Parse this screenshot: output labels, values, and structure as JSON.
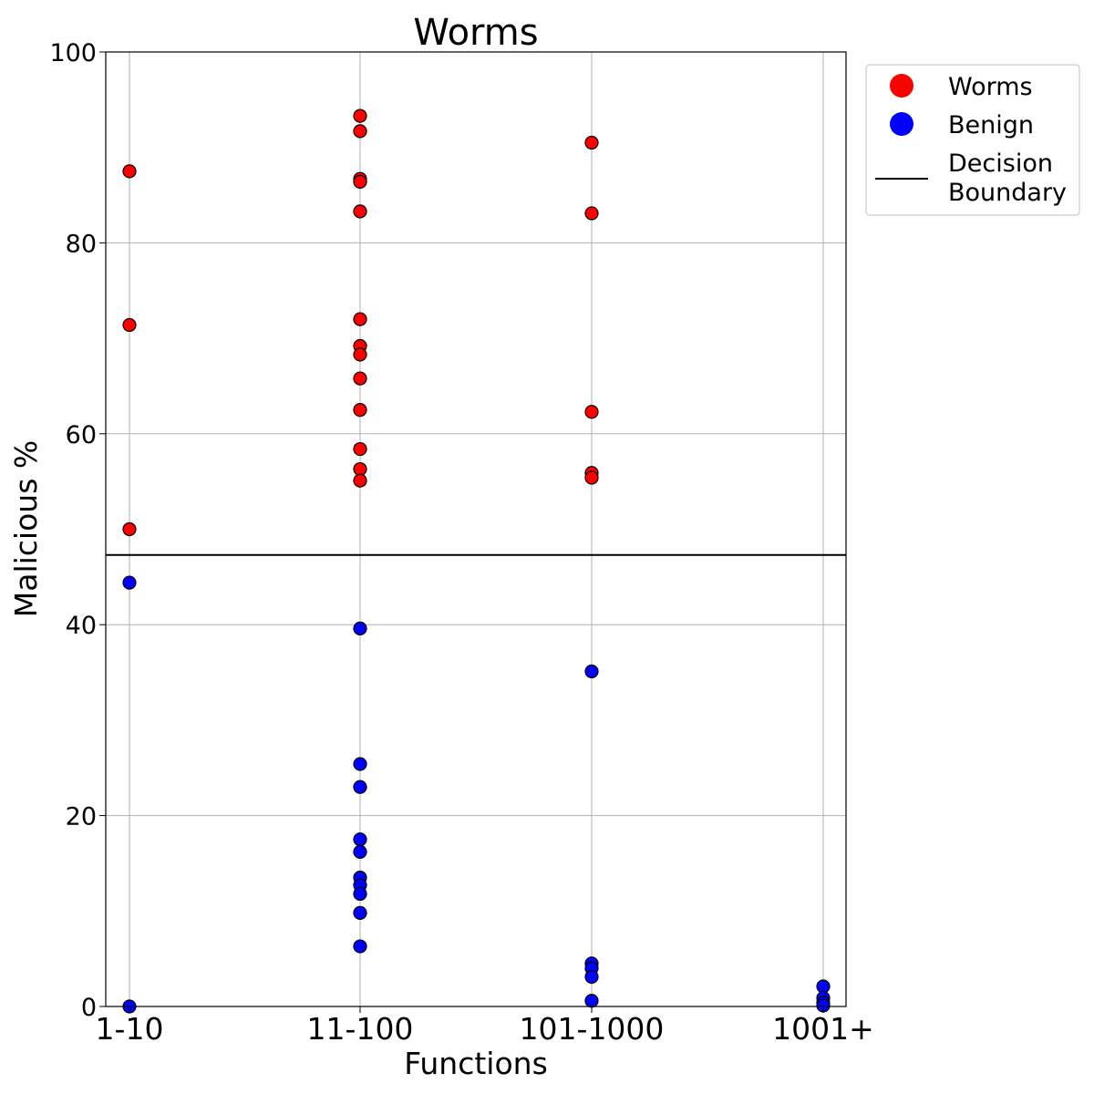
{
  "chart_data": {
    "type": "scatter",
    "title": "Worms",
    "xlabel": "Functions",
    "ylabel": "Malicious %",
    "categories": [
      "1-10",
      "11-100",
      "101-1000",
      "1001+"
    ],
    "ylim": [
      0,
      100
    ],
    "yticks": [
      "0",
      "20",
      "40",
      "60",
      "80",
      "100"
    ],
    "grid": true,
    "legend_position": "outside top-right",
    "decision_boundary": 47.3,
    "series": [
      {
        "name": "Worms",
        "color": "#ff0000",
        "points": [
          {
            "x": "1-10",
            "y": 87.5
          },
          {
            "x": "1-10",
            "y": 71.4
          },
          {
            "x": "1-10",
            "y": 50.0
          },
          {
            "x": "11-100",
            "y": 93.3
          },
          {
            "x": "11-100",
            "y": 91.7
          },
          {
            "x": "11-100",
            "y": 86.7
          },
          {
            "x": "11-100",
            "y": 86.4
          },
          {
            "x": "11-100",
            "y": 83.3
          },
          {
            "x": "11-100",
            "y": 72.0
          },
          {
            "x": "11-100",
            "y": 69.2
          },
          {
            "x": "11-100",
            "y": 68.3
          },
          {
            "x": "11-100",
            "y": 65.8
          },
          {
            "x": "11-100",
            "y": 62.5
          },
          {
            "x": "11-100",
            "y": 58.4
          },
          {
            "x": "11-100",
            "y": 56.3
          },
          {
            "x": "11-100",
            "y": 55.1
          },
          {
            "x": "101-1000",
            "y": 90.5
          },
          {
            "x": "101-1000",
            "y": 83.1
          },
          {
            "x": "101-1000",
            "y": 62.3
          },
          {
            "x": "101-1000",
            "y": 55.9
          },
          {
            "x": "101-1000",
            "y": 55.4
          }
        ]
      },
      {
        "name": "Benign",
        "color": "#0000ff",
        "points": [
          {
            "x": "1-10",
            "y": 44.4
          },
          {
            "x": "1-10",
            "y": 0.0
          },
          {
            "x": "11-100",
            "y": 39.6
          },
          {
            "x": "11-100",
            "y": 25.4
          },
          {
            "x": "11-100",
            "y": 23.0
          },
          {
            "x": "11-100",
            "y": 17.5
          },
          {
            "x": "11-100",
            "y": 16.2
          },
          {
            "x": "11-100",
            "y": 13.5
          },
          {
            "x": "11-100",
            "y": 12.7
          },
          {
            "x": "11-100",
            "y": 11.8
          },
          {
            "x": "11-100",
            "y": 9.8
          },
          {
            "x": "11-100",
            "y": 6.3
          },
          {
            "x": "101-1000",
            "y": 35.1
          },
          {
            "x": "101-1000",
            "y": 4.5
          },
          {
            "x": "101-1000",
            "y": 4.0
          },
          {
            "x": "101-1000",
            "y": 3.1
          },
          {
            "x": "101-1000",
            "y": 0.6
          },
          {
            "x": "1001+",
            "y": 2.1
          },
          {
            "x": "1001+",
            "y": 0.9
          },
          {
            "x": "1001+",
            "y": 0.4
          },
          {
            "x": "1001+",
            "y": 0.1
          }
        ]
      }
    ],
    "legend": {
      "entries": [
        {
          "label": "Worms",
          "marker": "circle",
          "color": "#ff0000"
        },
        {
          "label": "Benign",
          "marker": "circle",
          "color": "#0000ff"
        },
        {
          "label_lines": [
            "Decision",
            "Boundary"
          ],
          "marker": "line",
          "color": "#000000"
        }
      ]
    }
  }
}
